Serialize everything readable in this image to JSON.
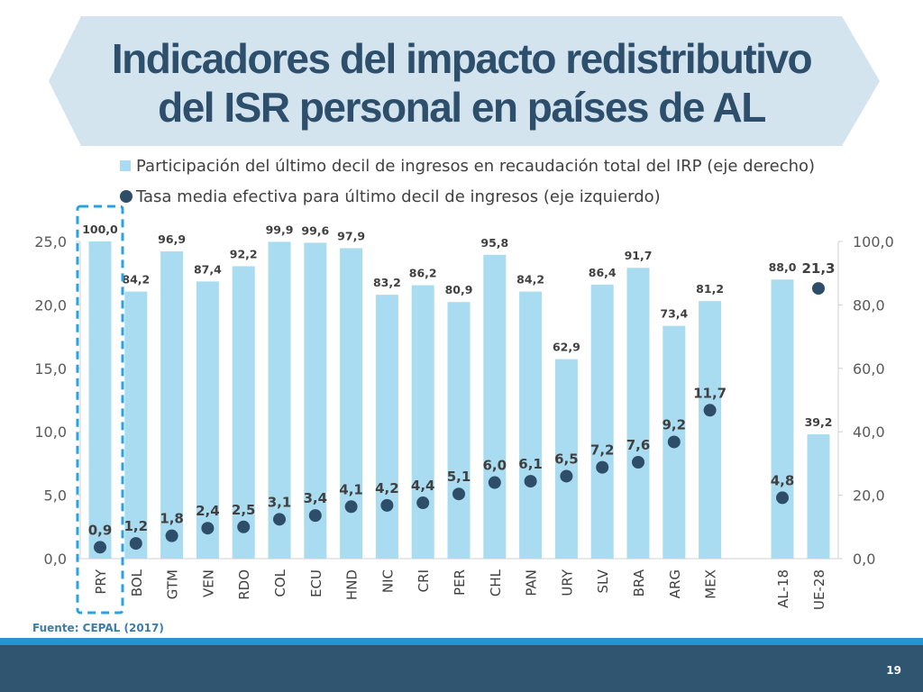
{
  "slide": {
    "title_line1": "Indicadores del impacto redistributivo",
    "title_line2": "del ISR personal en países de AL",
    "source": "Fuente: CEPAL (2017)",
    "page_number": "19"
  },
  "colors": {
    "bar": "#a9dcf1",
    "dot": "#2e4d68",
    "highlight_box": "#29a3dc",
    "banner_fill": "#d3e4ef",
    "title": "#2d4f6c"
  },
  "chart_data": {
    "type": "bar",
    "title": "Indicadores del impacto redistributivo del ISR personal en países de AL",
    "categories": [
      "PRY",
      "BOL",
      "GTM",
      "VEN",
      "RDO",
      "COL",
      "ECU",
      "HND",
      "NIC",
      "CRI",
      "PER",
      "CHL",
      "PAN",
      "URY",
      "SLV",
      "BRA",
      "ARG",
      "MEX",
      "AL-18",
      "UE-28"
    ],
    "series": [
      {
        "name": "Participación del último decil de ingresos en recaudación total del IRP (eje derecho)",
        "type": "bar",
        "axis": "right",
        "values": [
          100.0,
          84.2,
          96.9,
          87.4,
          92.2,
          99.9,
          99.6,
          97.9,
          83.2,
          86.2,
          80.9,
          95.8,
          84.2,
          62.9,
          86.4,
          91.7,
          73.4,
          81.2,
          88.0,
          39.2
        ],
        "labels": [
          "100,0",
          "84,2",
          "96,9",
          "87,4",
          "92,2",
          "99,9",
          "99,6",
          "97,9",
          "83,2",
          "86,2",
          "80,9",
          "95,8",
          "84,2",
          "62,9",
          "86,4",
          "91,7",
          "73,4",
          "81,2",
          "88,0",
          "39,2"
        ]
      },
      {
        "name": "Tasa media efectiva para último decil de ingresos (eje izquierdo)",
        "type": "scatter",
        "axis": "left",
        "values": [
          0.9,
          1.2,
          1.8,
          2.4,
          2.5,
          3.1,
          3.4,
          4.1,
          4.2,
          4.4,
          5.1,
          6.0,
          6.1,
          6.5,
          7.2,
          7.6,
          9.2,
          11.7,
          4.8,
          21.3
        ],
        "labels": [
          "0,9",
          "1,2",
          "1,8",
          "2,4",
          "2,5",
          "3,1",
          "3,4",
          "4,1",
          "4,2",
          "4,4",
          "5,1",
          "6,0",
          "6,1",
          "6,5",
          "7,2",
          "7,6",
          "9,2",
          "11,7",
          "4,8",
          "21,3"
        ]
      }
    ],
    "y_left": {
      "min": 0,
      "max": 25,
      "ticks": [
        "0,0",
        "5,0",
        "10,0",
        "15,0",
        "20,0",
        "25,0"
      ]
    },
    "y_right": {
      "min": 0,
      "max": 100,
      "ticks": [
        "0,0",
        "20,0",
        "40,0",
        "60,0",
        "80,0",
        "100,0"
      ]
    },
    "highlight_category": "PRY",
    "grid": false,
    "legend_position": "top"
  }
}
